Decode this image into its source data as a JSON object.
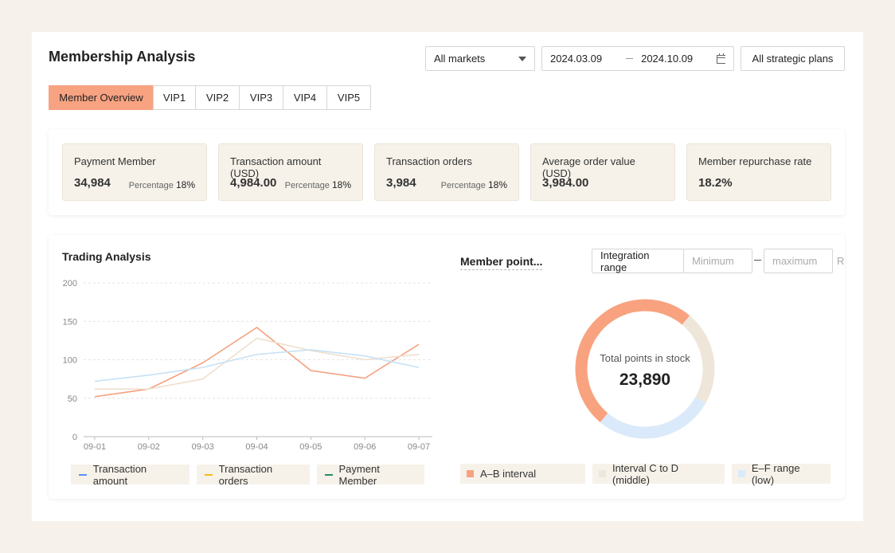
{
  "header": {
    "title": "Membership Analysis",
    "market_select": "All markets",
    "date_start": "2024.03.09",
    "date_end": "2024.10.09",
    "plans_button": "All strategic plans"
  },
  "tabs": [
    "Member Overview",
    "VIP1",
    "VIP2",
    "VIP3",
    "VIP4",
    "VIP5"
  ],
  "kpis": [
    {
      "label": "Payment Member",
      "value": "34,984",
      "percentage_label": "Percentage",
      "percentage": "18%"
    },
    {
      "label": "Transaction amount (USD)",
      "value": "4,984.00",
      "percentage_label": "Percentage",
      "percentage": "18%"
    },
    {
      "label": "Transaction orders",
      "value": "3,984",
      "percentage_label": "Percentage",
      "percentage": "18%"
    },
    {
      "label": "Average order value (USD)",
      "value": "3,984.00"
    },
    {
      "label": "Member repurchase rate",
      "value": "18.2%"
    }
  ],
  "points_filter": {
    "label": "Integration range",
    "min_placeholder": "Minimum",
    "max_placeholder": "maximum",
    "cut_button": "R"
  },
  "chart_data": [
    {
      "type": "line",
      "title": "Trading Analysis",
      "categories": [
        "09-01",
        "09-02",
        "09-03",
        "09-04",
        "09-05",
        "09-06",
        "09-07"
      ],
      "series": [
        {
          "name": "Transaction amount",
          "color": "#f5a17f",
          "marker_color": "#5b8ff9",
          "values": [
            52,
            62,
            96,
            142,
            86,
            76,
            120
          ]
        },
        {
          "name": "Transaction orders",
          "color": "#efdfcd",
          "marker_color": "#f6bd16",
          "values": [
            62,
            62,
            75,
            128,
            112,
            100,
            107
          ]
        },
        {
          "name": "Payment Member",
          "color": "#c6e1f6",
          "marker_color": "#2a8a6a",
          "values": [
            72,
            80,
            90,
            107,
            113,
            105,
            90
          ]
        }
      ],
      "ylim": [
        0,
        200
      ],
      "yticks": [
        0,
        50,
        100,
        150,
        200
      ],
      "grid": true
    },
    {
      "type": "pie",
      "title": "Member point...",
      "center_label": "Total points in stock",
      "center_value": "23,890",
      "categories": [
        "A–B interval",
        "Interval C to D (middle)",
        "E–F range (low)"
      ],
      "values": [
        50,
        22,
        28
      ],
      "colors": [
        "#f8a27f",
        "#efe6da",
        "#dbeafa"
      ]
    }
  ]
}
